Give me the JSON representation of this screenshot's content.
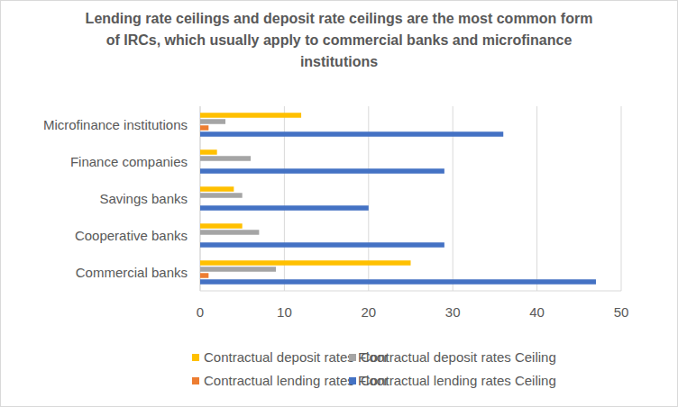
{
  "chart_data": {
    "type": "bar",
    "orientation": "horizontal",
    "title": "Lending rate ceilings and deposit rate ceilings are the most common form of IRCs, which usually apply to commercial banks and microfinance institutions",
    "categories": [
      "Microfinance institutions",
      "Finance companies",
      "Savings banks",
      "Cooperative banks",
      "Commercial banks"
    ],
    "series": [
      {
        "name": "Contractual deposit rates Floor",
        "color": "#ffc000",
        "values": [
          12,
          2,
          4,
          5,
          25
        ]
      },
      {
        "name": "Contractual deposit rates Ceiling",
        "color": "#a5a5a5",
        "values": [
          3,
          6,
          5,
          7,
          9
        ]
      },
      {
        "name": "Contractual lending rates Floor",
        "color": "#ed7d31",
        "values": [
          1,
          0,
          0,
          0,
          1
        ]
      },
      {
        "name": "Contractual lending rates Ceiling",
        "color": "#4472c4",
        "values": [
          36,
          29,
          20,
          29,
          47
        ]
      }
    ],
    "xlim": [
      0,
      50
    ],
    "xticks": [
      0,
      10,
      20,
      30,
      40,
      50
    ],
    "grid": true,
    "legend": "bottom"
  }
}
